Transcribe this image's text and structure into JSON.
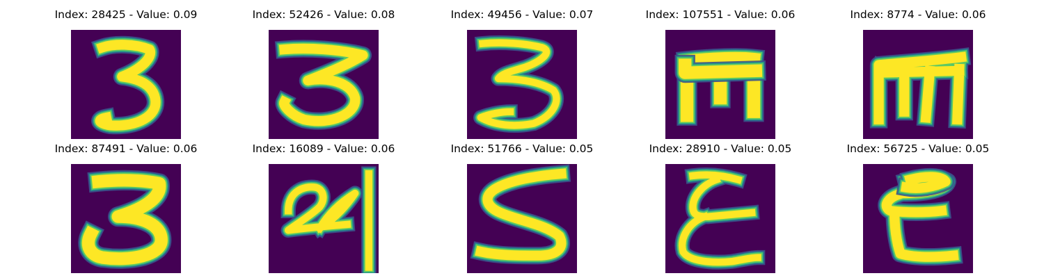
{
  "colormap": {
    "background": "#440154",
    "low": "#3b528b",
    "mid": "#21918c",
    "high": "#5ec962",
    "peak": "#fde725"
  },
  "panels": [
    {
      "title": "Index: 28425 - Value: 0.09",
      "content": "handwritten-3"
    },
    {
      "title": "Index: 52426 - Value: 0.08",
      "content": "handwritten-3"
    },
    {
      "title": "Index: 49456 - Value: 0.07",
      "content": "handwritten-3"
    },
    {
      "title": "Index: 107551 - Value: 0.06",
      "content": "handwritten-m"
    },
    {
      "title": "Index: 8774 - Value: 0.06",
      "content": "handwritten-m"
    },
    {
      "title": "Index: 87491 - Value: 0.06",
      "content": "handwritten-3"
    },
    {
      "title": "Index: 16089 - Value: 0.06",
      "content": "handwritten-24"
    },
    {
      "title": "Index: 51766 - Value: 0.05",
      "content": "handwritten-5"
    },
    {
      "title": "Index: 28910 - Value: 0.05",
      "content": "handwritten-epsilon"
    },
    {
      "title": "Index: 56725 - Value: 0.05",
      "content": "handwritten-epsilon"
    }
  ]
}
